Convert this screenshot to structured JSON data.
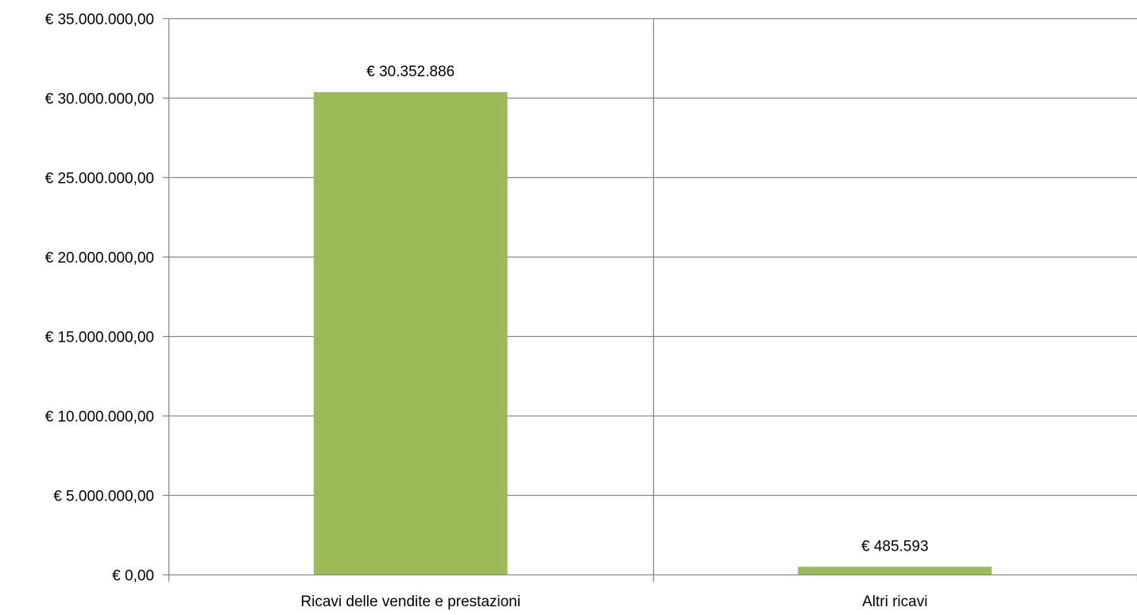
{
  "chart_data": {
    "type": "bar",
    "categories": [
      "Ricavi delle vendite e prestazioni",
      "Altri ricavi"
    ],
    "values": [
      30352886,
      485593
    ],
    "data_labels": [
      "€ 30.352.886",
      "€ 485.593"
    ],
    "title": "",
    "xlabel": "",
    "ylabel": "",
    "ylim": [
      0,
      35000000
    ],
    "yticks": [
      0,
      5000000,
      10000000,
      15000000,
      20000000,
      25000000,
      30000000,
      35000000
    ],
    "ytick_labels": [
      "€ 0,00",
      "€ 5.000.000,00",
      "€ 10.000.000,00",
      "€ 15.000.000,00",
      "€ 20.000.000,00",
      "€ 25.000.000,00",
      "€ 30.000.000,00",
      "€ 35.000.000,00"
    ],
    "grid": true,
    "legend": "none",
    "colors": {
      "bar": "#9BBB59",
      "grid": "#868686",
      "axis": "#868686",
      "text": "#000000"
    }
  }
}
